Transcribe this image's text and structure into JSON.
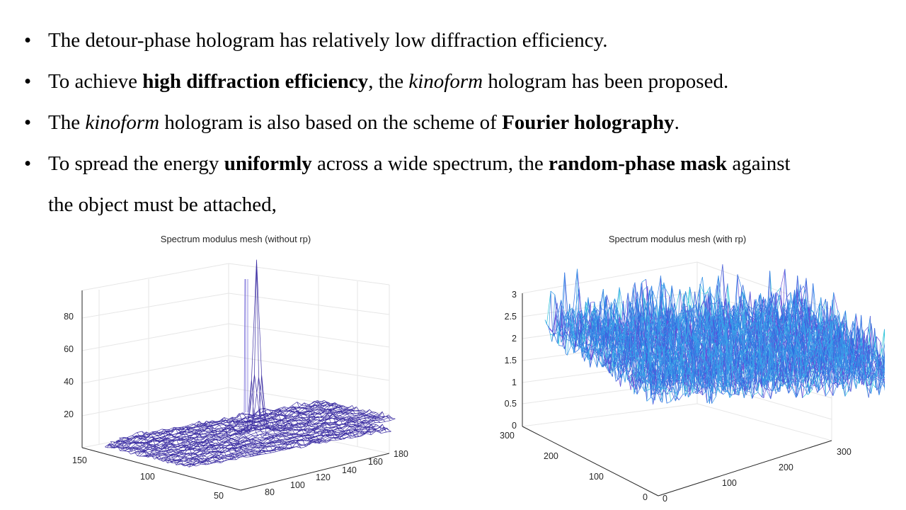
{
  "bullets": [
    {
      "parts": [
        {
          "t": "The detour-phase hologram has relatively low diffraction efficiency."
        }
      ]
    },
    {
      "parts": [
        {
          "t": "To achieve "
        },
        {
          "t": "high diffraction efficiency",
          "b": true
        },
        {
          "t": ", the "
        },
        {
          "t": "kinoform",
          "i": true
        },
        {
          "t": " hologram has been proposed."
        }
      ]
    },
    {
      "parts": [
        {
          "t": "The "
        },
        {
          "t": "kinoform",
          "i": true
        },
        {
          "t": " hologram is also based on the scheme of "
        },
        {
          "t": "Fourier holography",
          "b": true
        },
        {
          "t": "."
        }
      ]
    },
    {
      "parts": [
        {
          "t": "To spread the energy "
        },
        {
          "t": "uniformly",
          "b": true
        },
        {
          "t": " across a wide spectrum, the "
        },
        {
          "t": "random-phase mask",
          "b": true
        },
        {
          "t": " against"
        }
      ]
    }
  ],
  "bullet_continuation": "the object must be attached,",
  "chart_data": [
    {
      "type": "surface",
      "title": "Spectrum modulus mesh (without rp)",
      "x_ticks": [
        80,
        100,
        120,
        140,
        160,
        180
      ],
      "y_ticks": [
        50,
        100,
        150
      ],
      "z_ticks": [
        20,
        40,
        60,
        80
      ],
      "surface": "low noisy floor with a single narrow central peak reaching above 90",
      "color": "#3d2fa3"
    },
    {
      "type": "surface",
      "title": "Spectrum modulus mesh (with rp)",
      "x_ticks": [
        0,
        100,
        200,
        300
      ],
      "y_ticks": [
        0,
        100,
        200,
        300
      ],
      "z_ticks": [
        0,
        0.5,
        1,
        1.5,
        2,
        2.5,
        3
      ],
      "surface": "uniformly spread noisy spectrum, amplitudes mostly between 0.5 and 2.5",
      "color": "#2f6fe0"
    }
  ]
}
